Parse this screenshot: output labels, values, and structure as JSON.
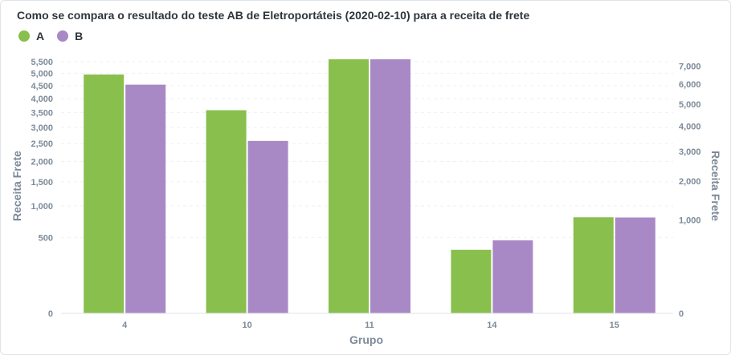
{
  "chart_data": {
    "type": "bar",
    "title": "Como se compara o resultado do teste AB de Eletroportáteis (2020-02-10) para a receita de frete",
    "xlabel": "Grupo",
    "ylabel_left": "Receita Frete",
    "ylabel_right": "Receita Frete",
    "y_scale": "sqrt",
    "categories": [
      "4",
      "10",
      "11",
      "14",
      "15"
    ],
    "series": [
      {
        "name": "A",
        "color": "#88bf4d",
        "axis": "left",
        "values": [
          4950,
          3580,
          5600,
          350,
          800
        ]
      },
      {
        "name": "B",
        "color": "#a989c5",
        "axis": "right",
        "values": [
          5980,
          3400,
          7380,
          610,
          1050
        ]
      }
    ],
    "left_axis": {
      "ticks": [
        0,
        500,
        1000,
        1500,
        2000,
        2500,
        3000,
        3500,
        4000,
        4500,
        5000,
        5500
      ],
      "tick_labels": [
        "0",
        "500",
        "1,000",
        "1,500",
        "2,000",
        "2,500",
        "3,000",
        "3,500",
        "4,000",
        "4,500",
        "5,000",
        "5,500"
      ],
      "max": 5600
    },
    "right_axis": {
      "ticks": [
        0,
        1000,
        2000,
        3000,
        4000,
        5000,
        6000,
        7000
      ],
      "tick_labels": [
        "0",
        "1,000",
        "2,000",
        "3,000",
        "4,000",
        "5,000",
        "6,000",
        "7,000"
      ],
      "max": 7380
    },
    "grid": true,
    "legend_position": "top-left"
  }
}
